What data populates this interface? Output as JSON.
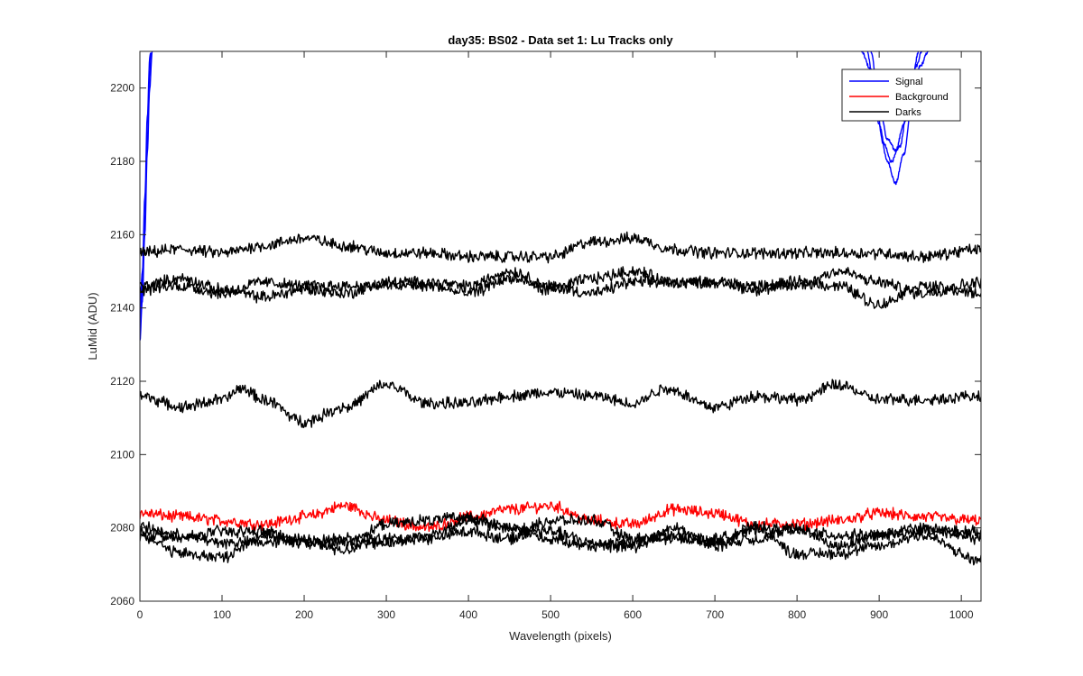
{
  "chart_data": {
    "type": "line",
    "title": "day35: BS02 - Data set 1: Lu Tracks only",
    "xlabel": "Wavelength (pixels)",
    "ylabel": "LuMid (ADU)",
    "xlim": [
      0,
      1024
    ],
    "ylim": [
      2060,
      2210
    ],
    "xticks": [
      0,
      100,
      200,
      300,
      400,
      500,
      600,
      700,
      800,
      900,
      1000
    ],
    "yticks": [
      2060,
      2080,
      2100,
      2120,
      2140,
      2160,
      2180,
      2200
    ],
    "grid": false,
    "legend": {
      "position": "top-right",
      "entries": [
        {
          "label": "Signal",
          "color": "#0000ff"
        },
        {
          "label": "Background",
          "color": "#ff0000"
        },
        {
          "label": "Darks",
          "color": "#000000"
        }
      ]
    },
    "series": [
      {
        "name": "Signal",
        "color": "#0000ff",
        "segments": [
          {
            "x": [
              0,
              3,
              6,
              9,
              12,
              15
            ],
            "y": [
              2131,
              2142,
              2160,
              2182,
              2200,
              2210
            ]
          },
          {
            "x": [
              0,
              3,
              6,
              9,
              12,
              14
            ],
            "y": [
              2136,
              2146,
              2164,
              2186,
              2204,
              2210
            ]
          },
          {
            "x": [
              0,
              3,
              6,
              9,
              12,
              13
            ],
            "y": [
              2140,
              2150,
              2170,
              2192,
              2208,
              2210
            ]
          },
          {
            "x": [
              878,
              890,
              900,
              910,
              920,
              930,
              940,
              950,
              960
            ],
            "y": [
              2210,
              2205,
              2190,
              2180,
              2174,
              2182,
              2196,
              2206,
              2210
            ]
          },
          {
            "x": [
              885,
              895,
              905,
              915,
              925,
              935,
              945,
              952
            ],
            "y": [
              2210,
              2198,
              2185,
              2180,
              2184,
              2195,
              2206,
              2210
            ]
          },
          {
            "x": [
              890,
              900,
              910,
              920,
              930,
              940,
              948
            ],
            "y": [
              2210,
              2196,
              2186,
              2183,
              2190,
              2202,
              2210
            ]
          }
        ]
      },
      {
        "name": "Background",
        "color": "#ff0000",
        "segments": [
          {
            "x": [
              0,
              50,
              100,
              150,
              200,
              250,
              300,
              350,
              400,
              450,
              500,
              550,
              600,
              650,
              700,
              750,
              800,
              850,
              900,
              950,
              1024
            ],
            "y": [
              2084,
              2083,
              2082,
              2081,
              2083,
              2086,
              2082,
              2080,
              2083,
              2085,
              2086,
              2082,
              2081,
              2085,
              2084,
              2081,
              2081,
              2082,
              2084,
              2083,
              2082
            ]
          }
        ]
      },
      {
        "name": "Darks",
        "color": "#000000",
        "segments": [
          {
            "x": [
              0,
              50,
              100,
              150,
              200,
              250,
              300,
              350,
              400,
              450,
              500,
              550,
              600,
              650,
              700,
              750,
              800,
              850,
              900,
              950,
              1024
            ],
            "y": [
              2155,
              2156,
              2155,
              2157,
              2159,
              2157,
              2155,
              2155,
              2154,
              2154,
              2154,
              2158,
              2159,
              2156,
              2155,
              2155,
              2155,
              2155,
              2155,
              2154,
              2156
            ]
          },
          {
            "x": [
              0,
              50,
              100,
              150,
              200,
              250,
              300,
              350,
              400,
              450,
              500,
              550,
              600,
              650,
              700,
              750,
              800,
              850,
              900,
              950,
              1024
            ],
            "y": [
              2146,
              2148,
              2145,
              2143,
              2145,
              2144,
              2147,
              2147,
              2146,
              2150,
              2146,
              2144,
              2147,
              2147,
              2147,
              2145,
              2146,
              2150,
              2147,
              2144,
              2147
            ]
          },
          {
            "x": [
              0,
              50,
              100,
              150,
              200,
              250,
              300,
              350,
              400,
              450,
              500,
              550,
              600,
              650,
              700,
              750,
              800,
              850,
              900,
              950,
              1024
            ],
            "y": [
              2145,
              2146,
              2144,
              2147,
              2146,
              2146,
              2146,
              2146,
              2144,
              2148,
              2145,
              2148,
              2150,
              2147,
              2147,
              2146,
              2147,
              2146,
              2141,
              2146,
              2144
            ]
          },
          {
            "x": [
              0,
              50,
              100,
              125,
              150,
              200,
              250,
              300,
              350,
              400,
              450,
              500,
              550,
              600,
              640,
              700,
              750,
              800,
              850,
              900,
              950,
              1024
            ],
            "y": [
              2116,
              2113,
              2115,
              2118,
              2115,
              2109,
              2113,
              2119,
              2114,
              2114,
              2116,
              2117,
              2116,
              2114,
              2118,
              2113,
              2116,
              2115,
              2119,
              2115,
              2115,
              2116
            ]
          },
          {
            "x": [
              0,
              50,
              100,
              150,
              200,
              250,
              300,
              350,
              400,
              450,
              500,
              550,
              600,
              650,
              700,
              750,
              800,
              850,
              900,
              950,
              1024
            ],
            "y": [
              2080,
              2078,
              2076,
              2076,
              2077,
              2076,
              2076,
              2078,
              2082,
              2080,
              2079,
              2076,
              2076,
              2077,
              2077,
              2080,
              2079,
              2078,
              2078,
              2080,
              2077
            ]
          },
          {
            "x": [
              0,
              50,
              100,
              150,
              200,
              250,
              300,
              350,
              400,
              450,
              500,
              550,
              600,
              650,
              700,
              750,
              800,
              850,
              900,
              950,
              1024
            ],
            "y": [
              2079,
              2077,
              2079,
              2079,
              2076,
              2077,
              2077,
              2077,
              2079,
              2077,
              2082,
              2082,
              2077,
              2078,
              2076,
              2077,
              2080,
              2075,
              2078,
              2079,
              2079
            ]
          },
          {
            "x": [
              0,
              50,
              100,
              150,
              200,
              250,
              300,
              350,
              400,
              450,
              500,
              550,
              600,
              650,
              700,
              750,
              800,
              850,
              900,
              950,
              1024
            ],
            "y": [
              2078,
              2073,
              2072,
              2078,
              2076,
              2074,
              2081,
              2082,
              2083,
              2080,
              2077,
              2075,
              2075,
              2080,
              2075,
              2080,
              2073,
              2073,
              2075,
              2078,
              2071
            ]
          }
        ]
      }
    ]
  }
}
